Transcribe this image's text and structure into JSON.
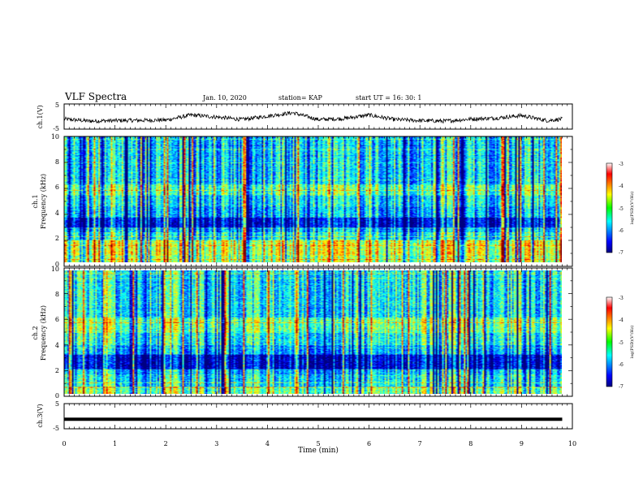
{
  "header": {
    "title": "VLF Spectra",
    "date": "Jan. 10, 2020",
    "station": "station= KAP",
    "start": "start  UT =   16: 30: 1"
  },
  "colorbar": {
    "label": "log(PSD)(V²/Hz)",
    "ticks": [
      "-3",
      "-4",
      "-5",
      "-6",
      "-7"
    ],
    "range": [
      -7,
      -3
    ]
  },
  "chart_data": [
    {
      "type": "line",
      "panel": "ch1-waveform",
      "ylabel": "ch.1(V)",
      "ylim": [
        -5,
        5
      ],
      "yticks": [
        "5",
        "-5"
      ],
      "xlim": [
        0,
        10
      ],
      "description_values": {
        "x_min": [
          0,
          0.5,
          1,
          1.5,
          2,
          2.5,
          3,
          3.5,
          4,
          4.5,
          5,
          5.5,
          6,
          6.5,
          7,
          7.5,
          8,
          8.5,
          9,
          9.5,
          9.8
        ],
        "y_v": [
          -1.0,
          -1.8,
          -1.6,
          -1.5,
          -1.4,
          0.6,
          -0.2,
          -1.2,
          0.2,
          1.5,
          -1.2,
          -0.8,
          0.6,
          -1.2,
          -1.6,
          -1.8,
          -1.0,
          -0.6,
          0.4,
          -1.6,
          -1.0
        ]
      }
    },
    {
      "type": "heatmap",
      "panel": "ch1-spectrogram",
      "ylabel": "ch.1\nFrequency  (kHz)",
      "ylim": [
        0,
        10
      ],
      "yticks": [
        "0",
        "2",
        "4",
        "6",
        "8",
        "10"
      ],
      "xlim": [
        0,
        10
      ],
      "zlim": [
        -7,
        -3
      ]
    },
    {
      "type": "heatmap",
      "panel": "ch2-spectrogram",
      "ylabel": "ch.2\nFrequency  (kHz)",
      "ylim": [
        0,
        10
      ],
      "yticks": [
        "0",
        "2",
        "4",
        "6",
        "8",
        "10"
      ],
      "xlim": [
        0,
        10
      ],
      "zlim": [
        -7,
        -3
      ]
    },
    {
      "type": "line",
      "panel": "ch3-waveform",
      "ylabel": "ch.3(V)",
      "ylim": [
        -5,
        5
      ],
      "yticks": [
        "5",
        "-5"
      ],
      "xlim": [
        0,
        10
      ],
      "description_values": {
        "x_min": [
          0,
          9.8
        ],
        "y_v": [
          -1.2,
          -1.2
        ]
      }
    }
  ],
  "x_axis": {
    "label": "Time  (min)",
    "ticks": [
      "0",
      "1",
      "2",
      "3",
      "4",
      "5",
      "6",
      "7",
      "8",
      "9",
      "10"
    ]
  }
}
